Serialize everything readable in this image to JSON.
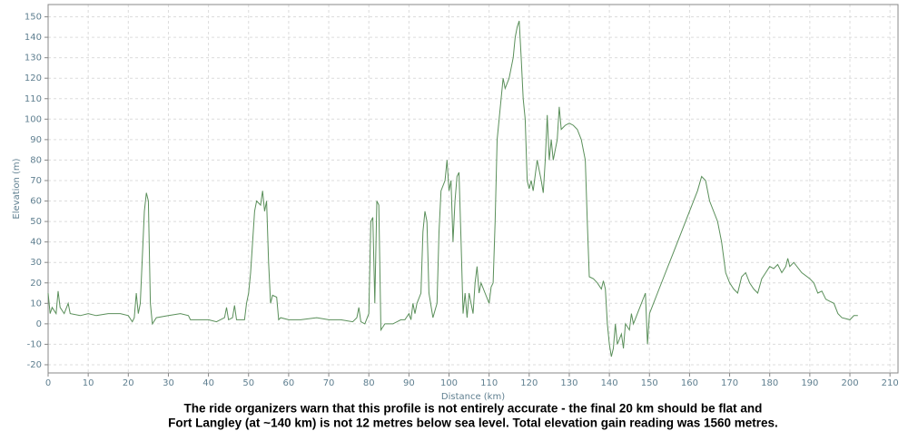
{
  "chart_data": {
    "type": "line",
    "xlabel": "Distance (km)",
    "ylabel": "Elevation (m)",
    "caption": [
      "The ride organizers warn that this profile is not entirely accurate - the final 20 km should be flat and",
      "Fort Langley (at ~140 km) is not 12 metres below sea level. Total elevation gain reading was 1560 metres."
    ],
    "xlim": [
      0,
      212
    ],
    "ylim": [
      -24,
      156
    ],
    "xticks": [
      0,
      10,
      20,
      30,
      40,
      50,
      60,
      70,
      80,
      90,
      100,
      110,
      120,
      130,
      140,
      150,
      160,
      170,
      180,
      190,
      200,
      210
    ],
    "yticks": [
      -20,
      -10,
      0,
      10,
      20,
      30,
      40,
      50,
      60,
      70,
      80,
      90,
      100,
      110,
      120,
      130,
      140,
      150
    ],
    "grid": true,
    "series": [
      {
        "color": "#5a8f5a",
        "x": [
          0,
          0.5,
          1,
          2,
          2.5,
          3,
          4,
          5,
          5.5,
          8,
          10,
          12,
          15,
          18,
          20,
          21,
          21.5,
          22,
          22.5,
          23,
          24,
          24.5,
          25,
          25.5,
          26,
          27,
          30,
          33,
          35,
          35.5,
          40,
          42,
          44,
          44.5,
          45,
          46,
          46.5,
          47,
          49,
          49.5,
          50,
          50.5,
          51,
          51.5,
          52,
          53,
          53.5,
          54,
          54.5,
          55,
          55.5,
          56,
          57,
          57.5,
          58,
          60,
          63,
          67,
          70,
          73,
          76,
          77,
          77.5,
          78,
          79,
          80,
          80.5,
          81,
          81.5,
          82,
          82.5,
          83,
          84,
          86,
          88,
          89,
          90,
          90.5,
          91,
          91.5,
          92,
          93,
          93.5,
          94,
          94.5,
          95,
          96,
          97,
          97.5,
          98,
          99,
          99.5,
          100,
          100.5,
          101,
          101.5,
          102,
          102.5,
          103,
          103.5,
          104,
          104.5,
          105,
          106,
          106.5,
          107,
          107.5,
          108,
          109,
          110,
          110.5,
          111,
          111.5,
          112,
          113,
          113.5,
          114,
          115,
          116,
          116.5,
          117,
          117.5,
          118,
          118.5,
          119,
          119.5,
          120,
          120.5,
          121,
          122,
          123,
          123.5,
          124,
          124.5,
          125,
          125.5,
          126,
          127,
          127.5,
          128,
          129,
          130,
          131,
          132,
          133,
          134,
          134.5,
          135,
          136,
          137,
          138,
          138.5,
          139,
          139.5,
          140,
          140.5,
          141,
          141.5,
          142,
          143,
          143.5,
          144,
          145,
          145.5,
          146,
          147,
          148,
          149,
          149.5,
          150,
          151,
          152,
          154,
          156,
          158,
          160,
          162,
          163,
          164,
          165,
          167,
          168,
          169,
          170,
          171,
          172,
          173,
          174,
          175,
          176,
          177,
          178,
          179,
          180,
          181,
          182,
          183,
          184,
          184.5,
          185,
          186,
          188,
          190,
          191,
          192,
          193,
          194,
          195,
          196,
          197,
          198,
          200,
          201,
          202
        ],
        "values": [
          15,
          5,
          8,
          5,
          16,
          8,
          5,
          10,
          5,
          4,
          5,
          4,
          5,
          5,
          4,
          1,
          3,
          15,
          5,
          10,
          55,
          64,
          60,
          10,
          0,
          3,
          4,
          5,
          4,
          2,
          2,
          1,
          3,
          8,
          2,
          3,
          9,
          2,
          2,
          10,
          15,
          25,
          40,
          55,
          60,
          58,
          65,
          55,
          60,
          30,
          10,
          14,
          13,
          2,
          3,
          2,
          2,
          3,
          2,
          2,
          1,
          3,
          8,
          1,
          0,
          5,
          50,
          52,
          10,
          60,
          58,
          -3,
          0,
          0,
          2,
          2,
          5,
          2,
          10,
          5,
          10,
          15,
          45,
          55,
          50,
          15,
          3,
          10,
          45,
          65,
          70,
          80,
          65,
          70,
          40,
          60,
          72,
          74,
          40,
          5,
          15,
          3,
          15,
          5,
          20,
          28,
          15,
          20,
          15,
          10,
          18,
          20,
          50,
          90,
          110,
          120,
          115,
          120,
          130,
          140,
          145,
          148,
          130,
          110,
          100,
          70,
          66,
          70,
          65,
          80,
          70,
          64,
          80,
          102,
          80,
          90,
          80,
          90,
          106,
          95,
          97,
          98,
          97,
          95,
          90,
          80,
          50,
          23,
          22,
          20,
          17,
          21,
          17,
          0,
          -10,
          -16,
          -12,
          0,
          -10,
          -5,
          -12,
          0,
          -3,
          5,
          0,
          5,
          10,
          15,
          -10,
          5,
          10,
          15,
          25,
          35,
          45,
          55,
          65,
          72,
          70,
          60,
          50,
          40,
          25,
          20,
          17,
          15,
          23,
          25,
          20,
          17,
          15,
          22,
          25,
          28,
          27,
          29,
          25,
          28,
          32,
          28,
          30,
          25,
          22,
          20,
          15,
          16,
          12,
          11,
          10,
          5,
          3,
          2,
          4,
          4
        ]
      }
    ]
  }
}
